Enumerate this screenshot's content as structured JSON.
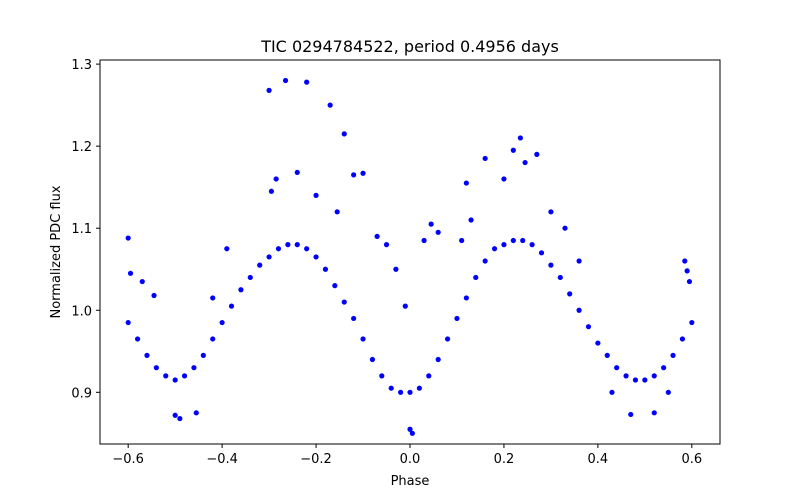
{
  "chart_data": {
    "type": "scatter",
    "title": "TIC 0294784522, period 0.4956 days",
    "xlabel": "Phase",
    "ylabel": "Normalized PDC flux",
    "xlim": [
      -0.66,
      0.66
    ],
    "ylim": [
      0.837,
      1.305
    ],
    "x_ticks": [
      -0.6,
      -0.4,
      -0.2,
      0.0,
      0.2,
      0.4,
      0.6
    ],
    "x_tick_labels": [
      "−0.6",
      "−0.4",
      "−0.2",
      "0.0",
      "0.2",
      "0.4",
      "0.6"
    ],
    "y_ticks": [
      0.9,
      1.0,
      1.1,
      1.2,
      1.3
    ],
    "y_tick_labels": [
      "0.9",
      "1.0",
      "1.1",
      "1.2",
      "1.3"
    ],
    "grid": false,
    "marker_color": "#0000ff",
    "series": [
      {
        "x": [
          -0.6,
          -0.58,
          -0.56,
          -0.54,
          -0.52,
          -0.5,
          -0.48,
          -0.46,
          -0.44,
          -0.42,
          -0.4,
          -0.38,
          -0.36,
          -0.34,
          -0.32,
          -0.3,
          -0.28,
          -0.26,
          -0.24,
          -0.22,
          -0.2,
          -0.18,
          -0.16,
          -0.14,
          -0.12,
          -0.1,
          -0.08,
          -0.06,
          -0.04,
          -0.02,
          0.0,
          0.02,
          0.04,
          0.06,
          0.08,
          0.1,
          0.12,
          0.14,
          0.16,
          0.18,
          0.2,
          0.22,
          0.24,
          0.26,
          0.28,
          0.3,
          0.32,
          0.34,
          0.36,
          0.38,
          0.4,
          0.42,
          0.44,
          0.46,
          0.48,
          0.5,
          0.52,
          0.54,
          0.56,
          0.58,
          0.6
        ],
        "y": [
          0.985,
          0.965,
          0.945,
          0.93,
          0.92,
          0.915,
          0.92,
          0.93,
          0.945,
          0.965,
          0.985,
          1.005,
          1.025,
          1.04,
          1.055,
          1.065,
          1.075,
          1.08,
          1.08,
          1.075,
          1.065,
          1.05,
          1.03,
          1.01,
          0.99,
          0.965,
          0.94,
          0.92,
          0.905,
          0.9,
          0.9,
          0.905,
          0.92,
          0.94,
          0.965,
          0.99,
          1.015,
          1.04,
          1.06,
          1.075,
          1.08,
          1.085,
          1.085,
          1.08,
          1.07,
          1.055,
          1.04,
          1.02,
          1.0,
          0.98,
          0.96,
          0.945,
          0.93,
          0.92,
          0.915,
          0.915,
          0.92,
          0.93,
          0.945,
          0.965,
          0.985
        ]
      }
    ],
    "outliers": {
      "x": [
        -0.6,
        -0.595,
        -0.57,
        -0.545,
        -0.5,
        -0.49,
        -0.455,
        -0.42,
        -0.39,
        -0.3,
        -0.295,
        -0.285,
        -0.265,
        -0.24,
        -0.22,
        -0.2,
        -0.17,
        -0.155,
        -0.14,
        -0.12,
        -0.1,
        -0.07,
        -0.05,
        -0.03,
        -0.01,
        0.0,
        0.005,
        0.03,
        0.045,
        0.06,
        0.11,
        0.12,
        0.13,
        0.16,
        0.2,
        0.22,
        0.235,
        0.245,
        0.27,
        0.3,
        0.33,
        0.36,
        0.43,
        0.47,
        0.52,
        0.55,
        0.585,
        0.59,
        0.595
      ],
      "y": [
        1.088,
        1.045,
        1.035,
        1.018,
        0.872,
        0.868,
        0.875,
        1.015,
        1.075,
        1.268,
        1.145,
        1.16,
        1.28,
        1.168,
        1.278,
        1.14,
        1.25,
        1.12,
        1.215,
        1.165,
        1.167,
        1.09,
        1.08,
        1.05,
        1.005,
        0.855,
        0.85,
        1.085,
        1.105,
        1.095,
        1.085,
        1.155,
        1.11,
        1.185,
        1.16,
        1.195,
        1.21,
        1.18,
        1.19,
        1.12,
        1.1,
        1.06,
        0.9,
        0.873,
        0.875,
        0.9,
        1.06,
        1.048,
        1.035
      ]
    }
  }
}
